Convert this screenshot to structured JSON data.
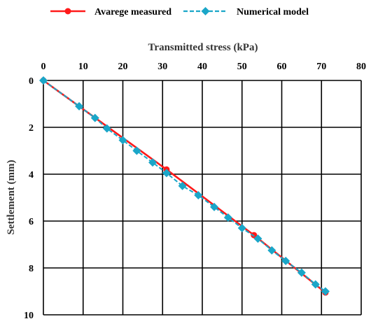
{
  "chart_data": {
    "type": "line",
    "xlabel": "Transmitted stress (kPa)",
    "ylabel": "Settlement (mm)",
    "xlim": [
      0,
      80
    ],
    "ylim": [
      0,
      10
    ],
    "x_ticks": [
      "0",
      "10",
      "20",
      "30",
      "40",
      "50",
      "60",
      "70",
      "80"
    ],
    "y_ticks": [
      "0",
      "2",
      "4",
      "6",
      "8",
      "10"
    ],
    "x_axis_position": "top",
    "y_axis_inverted": true,
    "grid": true,
    "legend_position": "top",
    "series": [
      {
        "name": "Avarege measured",
        "color": "#ff1a1a",
        "line_style": "solid",
        "marker": "circle",
        "x": [
          0,
          31,
          53,
          71
        ],
        "y": [
          0,
          3.8,
          6.6,
          9.05
        ]
      },
      {
        "name": "Numerical model",
        "color": "#1aa6c8",
        "line_style": "dashed",
        "marker": "diamond",
        "x": [
          0,
          9,
          13,
          16,
          20,
          23.5,
          27.5,
          31,
          35,
          39,
          43,
          46.5,
          50,
          54,
          57.5,
          61,
          65,
          68.5,
          71
        ],
        "y": [
          0,
          1.1,
          1.6,
          2.05,
          2.55,
          3.0,
          3.5,
          3.95,
          4.5,
          4.9,
          5.4,
          5.85,
          6.3,
          6.75,
          7.25,
          7.7,
          8.2,
          8.7,
          9.0
        ]
      }
    ]
  }
}
